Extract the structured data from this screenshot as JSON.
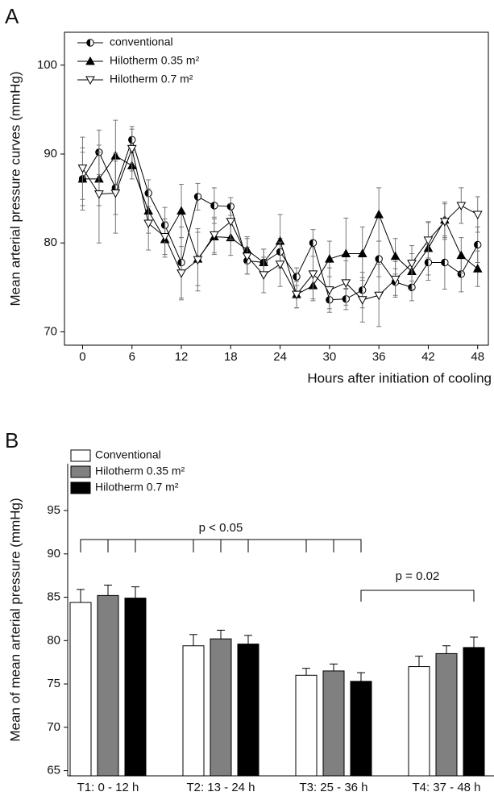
{
  "chart_data": [
    {
      "type": "line",
      "panel_label": "A",
      "y_label": "Mean arterial pressure curves (mmHg)",
      "x_label": "Hours after initiation of cooling",
      "x": [
        0,
        2,
        4,
        6,
        8,
        10,
        12,
        14,
        16,
        18,
        20,
        22,
        24,
        26,
        28,
        30,
        32,
        34,
        36,
        38,
        40,
        42,
        44,
        46,
        48
      ],
      "xlim": [
        -2.2,
        49.3
      ],
      "xticks": [
        0,
        6,
        12,
        18,
        24,
        30,
        36,
        42,
        48
      ],
      "ylim": [
        68.5,
        103.7
      ],
      "yticks": [
        70,
        80,
        90,
        100
      ],
      "legend": "top-left",
      "series": [
        {
          "name": "conventional",
          "color": "#000000",
          "marker": "half-circle",
          "values": [
            87.2,
            90.2,
            86.2,
            91.6,
            85.6,
            82,
            77.8,
            85.2,
            84.2,
            84.1,
            78,
            77.8,
            79,
            76.2,
            80,
            73.6,
            73.7,
            74.7,
            78.2,
            75.6,
            75,
            77.8,
            77.8,
            76.5,
            79.8
          ],
          "errors": [
            3.5,
            2.5,
            3,
            1.2,
            1.5,
            2,
            4,
            1.5,
            2,
            1,
            1.5,
            1.5,
            1.5,
            1,
            1.5,
            1,
            1.2,
            2,
            2,
            1.5,
            1.5,
            2,
            3,
            2,
            2
          ]
        },
        {
          "name": "Hilotherm 0.35 m²",
          "color": "#000000",
          "marker": "triangle-up",
          "values": [
            87.2,
            87.2,
            89.8,
            88.7,
            83.6,
            80.4,
            83.6,
            78.2,
            80.7,
            80.6,
            79.2,
            77.8,
            80.2,
            74.2,
            75.2,
            78.2,
            78.8,
            78.8,
            83.2,
            78.5,
            76.8,
            79.4,
            82.6,
            78.6,
            77.1
          ],
          "errors": [
            3,
            3,
            4,
            1.5,
            2.5,
            2,
            3,
            3,
            2,
            2,
            1.5,
            1.5,
            3,
            1.5,
            1.5,
            2,
            4,
            3,
            3,
            2,
            2,
            3,
            2,
            2,
            2
          ]
        },
        {
          "name": "Hilotherm 0.7 m²",
          "color": "#000000",
          "marker": "triangle-down-open",
          "values": [
            88.4,
            85.5,
            85.6,
            90.6,
            82.2,
            80.7,
            76.6,
            78.1,
            80.9,
            82.4,
            78.5,
            76.4,
            77.6,
            74.2,
            76.5,
            74.7,
            75.5,
            73.6,
            74.1,
            75.9,
            77.7,
            80.3,
            82.4,
            84.2,
            83.2
          ],
          "errors": [
            3.5,
            5.5,
            4.5,
            2.5,
            3,
            2,
            3,
            3.5,
            2,
            2,
            2,
            2,
            2.5,
            1.5,
            3,
            2.5,
            2.5,
            2.5,
            3.5,
            2,
            2,
            2,
            2,
            2,
            2
          ]
        }
      ]
    },
    {
      "type": "bar",
      "panel_label": "B",
      "y_label": "Mean of mean arterial pressure (mmHg)",
      "categories": [
        "T1: 0 - 12 h",
        "T2: 13 - 24 h",
        "T3: 25 - 36 h",
        "T4: 37 - 48 h"
      ],
      "ylim": [
        64.4,
        100.4
      ],
      "yticks": [
        65,
        70,
        75,
        80,
        85,
        90,
        95
      ],
      "legend": "top-left",
      "series": [
        {
          "name": "Conventional",
          "color": "#ffffff",
          "values": [
            84.4,
            79.4,
            76,
            77
          ],
          "errors": [
            1.5,
            1.3,
            0.8,
            1.2
          ]
        },
        {
          "name": "Hilotherm 0.35 m²",
          "color": "#808080",
          "values": [
            85.2,
            80.2,
            76.5,
            78.5
          ],
          "errors": [
            1.2,
            1,
            0.8,
            0.9
          ]
        },
        {
          "name": "Hilotherm 0.7 m²",
          "color": "#000000",
          "values": [
            84.9,
            79.6,
            75.3,
            79.2
          ],
          "errors": [
            1.3,
            1,
            1,
            1.2
          ]
        }
      ],
      "annotations": [
        {
          "text": "p < 0.05"
        },
        {
          "text": "p = 0.02"
        }
      ]
    }
  ]
}
